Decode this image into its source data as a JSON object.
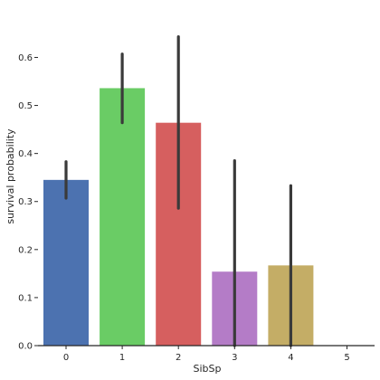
{
  "chart_data": {
    "type": "bar",
    "xlabel": "SibSp",
    "ylabel": "survival probability",
    "categories": [
      "0",
      "1",
      "2",
      "3",
      "4",
      "5"
    ],
    "values": [
      0.345,
      0.536,
      0.464,
      0.154,
      0.167,
      0.0
    ],
    "ci_low": [
      0.307,
      0.464,
      0.286,
      0.0,
      0.0,
      0.0
    ],
    "ci_high": [
      0.383,
      0.607,
      0.643,
      0.385,
      0.333,
      0.0
    ],
    "colors": [
      "#4c72b0",
      "#6acc65",
      "#d65f5f",
      "#b47cc7",
      "#c4ad66",
      "#77bedb"
    ],
    "errorbar_color": "#3a3a3a",
    "axis_color": "#262626",
    "ylim": [
      0.0,
      0.68
    ],
    "yticks": [
      "0.0",
      "0.1",
      "0.2",
      "0.3",
      "0.4",
      "0.5",
      "0.6"
    ],
    "grid": false,
    "legend": "none"
  }
}
